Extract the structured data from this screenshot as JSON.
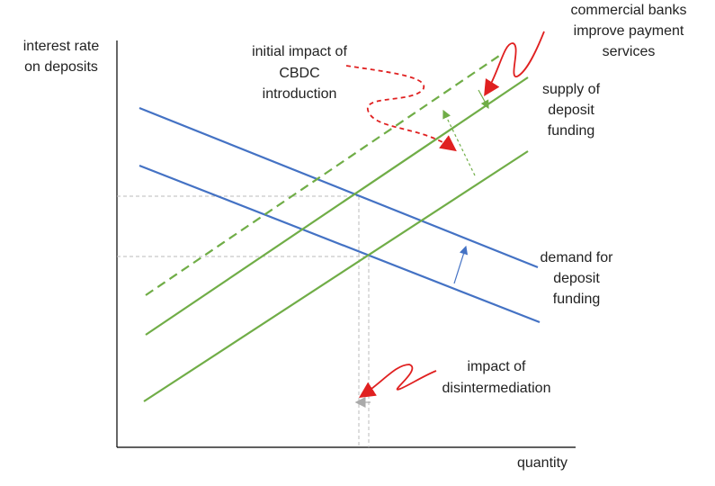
{
  "y_axis_label": [
    "interest rate",
    "on deposits"
  ],
  "x_axis_label": "quantity",
  "annotations": {
    "cbdc": [
      "initial impact of",
      "CBDC",
      "introduction"
    ],
    "banks": [
      "commercial banks",
      "improve payment",
      "services"
    ],
    "supply": [
      "supply of",
      "deposit",
      "funding"
    ],
    "demand": [
      "demand for",
      "deposit",
      "funding"
    ],
    "disintermediation": [
      "impact of",
      "disintermediation"
    ]
  }
}
